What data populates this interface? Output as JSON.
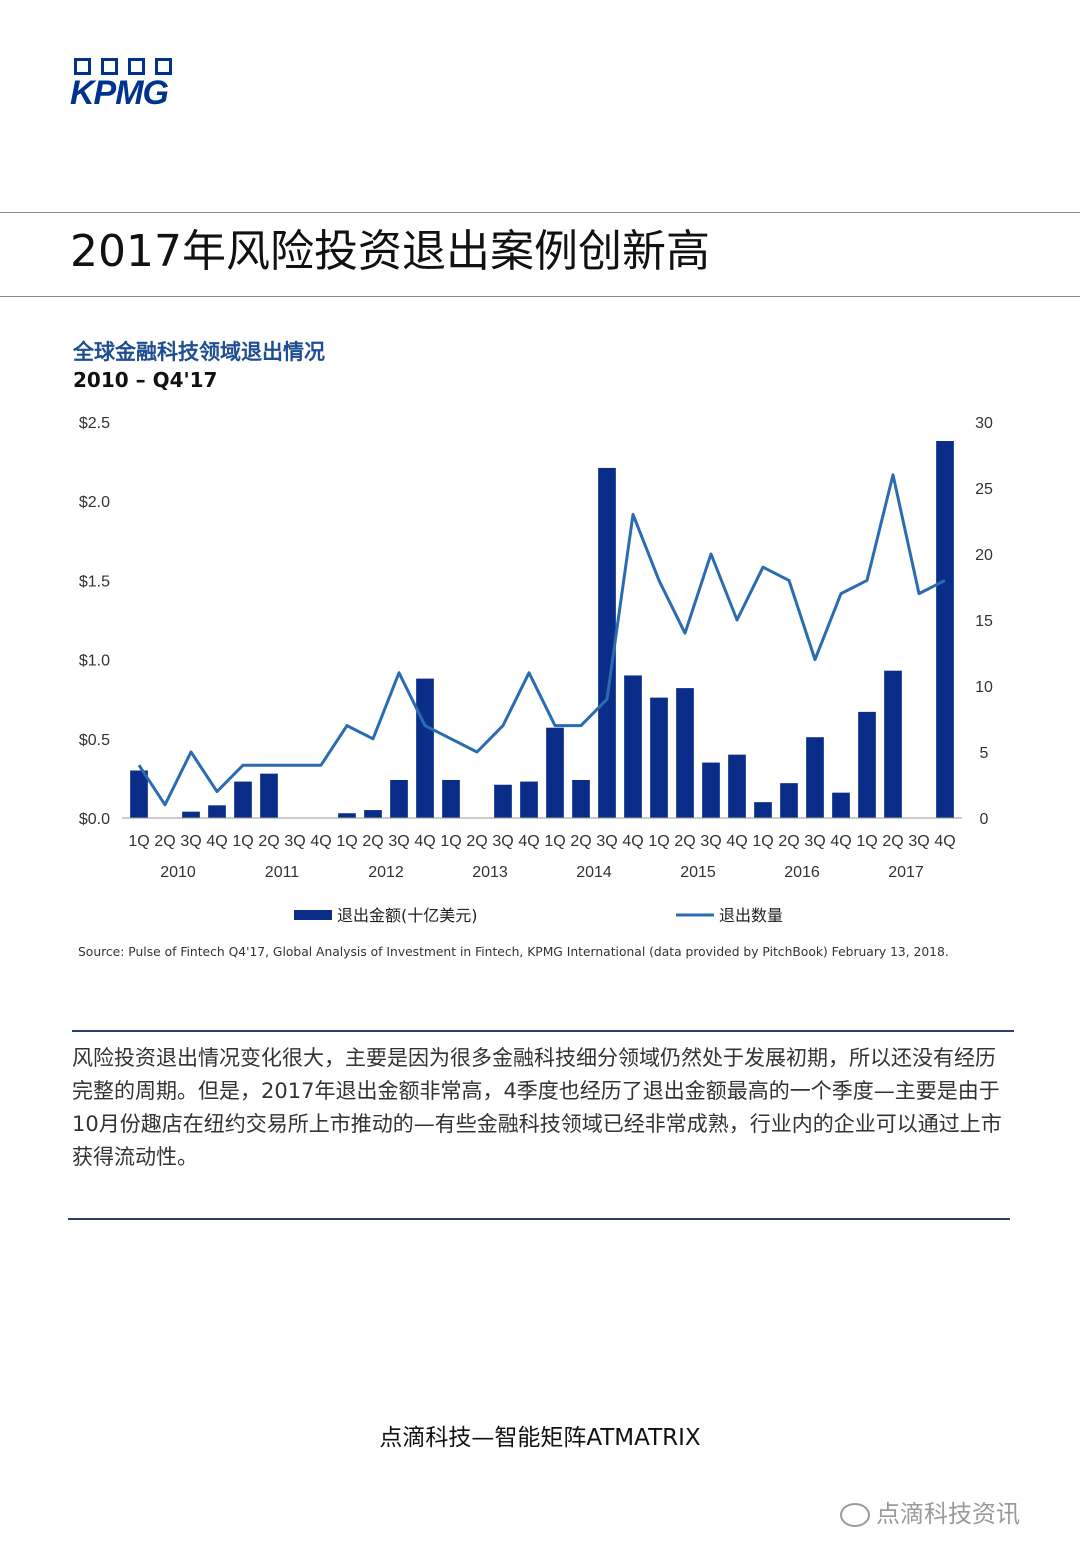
{
  "logo": {
    "text": "KPMG"
  },
  "page_title": "2017年风险投资退出案例创新高",
  "chart": {
    "title": "全球金融科技领域退出情况",
    "subtitle": "2010 – Q4'17",
    "legend": {
      "bar": "退出金额(十亿美元)",
      "line": "退出数量"
    },
    "source": "Source: Pulse of Fintech Q4'17, Global Analysis of Investment in Fintech, KPMG International (data provided by PitchBook) February 13, 2018."
  },
  "chart_data": {
    "type": "bar",
    "quarters": [
      "1Q",
      "2Q",
      "3Q",
      "4Q",
      "1Q",
      "2Q",
      "3Q",
      "4Q",
      "1Q",
      "2Q",
      "3Q",
      "4Q",
      "1Q",
      "2Q",
      "3Q",
      "4Q",
      "1Q",
      "2Q",
      "3Q",
      "4Q",
      "1Q",
      "2Q",
      "3Q",
      "4Q",
      "1Q",
      "2Q",
      "3Q",
      "4Q",
      "1Q",
      "2Q",
      "3Q",
      "4Q"
    ],
    "years": [
      "2010",
      "2011",
      "2012",
      "2013",
      "2014",
      "2015",
      "2016",
      "2017"
    ],
    "series": [
      {
        "name": "退出金额(十亿美元)",
        "axis": "left",
        "values": [
          0.3,
          0,
          0.04,
          0.08,
          0.23,
          0.28,
          0,
          0,
          0.03,
          0.05,
          0.24,
          0.88,
          0.24,
          0,
          0.21,
          0.23,
          0.57,
          0.24,
          2.21,
          0.9,
          0.76,
          0.82,
          0.35,
          0.4,
          0.1,
          0.22,
          0.51,
          0.16,
          0.67,
          0.93,
          0,
          2.38
        ]
      },
      {
        "name": "退出数量",
        "axis": "right",
        "values": [
          4,
          1,
          5,
          2,
          4,
          4,
          4,
          4,
          7,
          6,
          11,
          7,
          6,
          5,
          7,
          11,
          7,
          7,
          9,
          23,
          18,
          14,
          20,
          15,
          19,
          18,
          12,
          17,
          18,
          26,
          17,
          18
        ]
      }
    ],
    "y_left": {
      "min": 0,
      "max": 2.5,
      "ticks": [
        "$0.0",
        "$0.5",
        "$1.0",
        "$1.5",
        "$2.0",
        "$2.5"
      ]
    },
    "y_right": {
      "min": 0,
      "max": 30,
      "ticks": [
        "0",
        "5",
        "10",
        "15",
        "20",
        "25",
        "30"
      ]
    },
    "legend_position": "bottom",
    "grid": false,
    "colors": {
      "bar": "#0a2d8a",
      "line": "#2b6cb0"
    }
  },
  "body_text": "风险投资退出情况变化很大，主要是因为很多金融科技细分领域仍然处于发展初期，所以还没有经历完整的周期。但是，2017年退出金额非常高，4季度也经历了退出金额最高的一个季度—主要是由于10月份趣店在纽约交易所上市推动的—有些金融科技领域已经非常成熟，行业内的企业可以通过上市获得流动性。",
  "footer": "点滴科技—智能矩阵ATMATRIX",
  "watermark": "点滴科技资讯"
}
